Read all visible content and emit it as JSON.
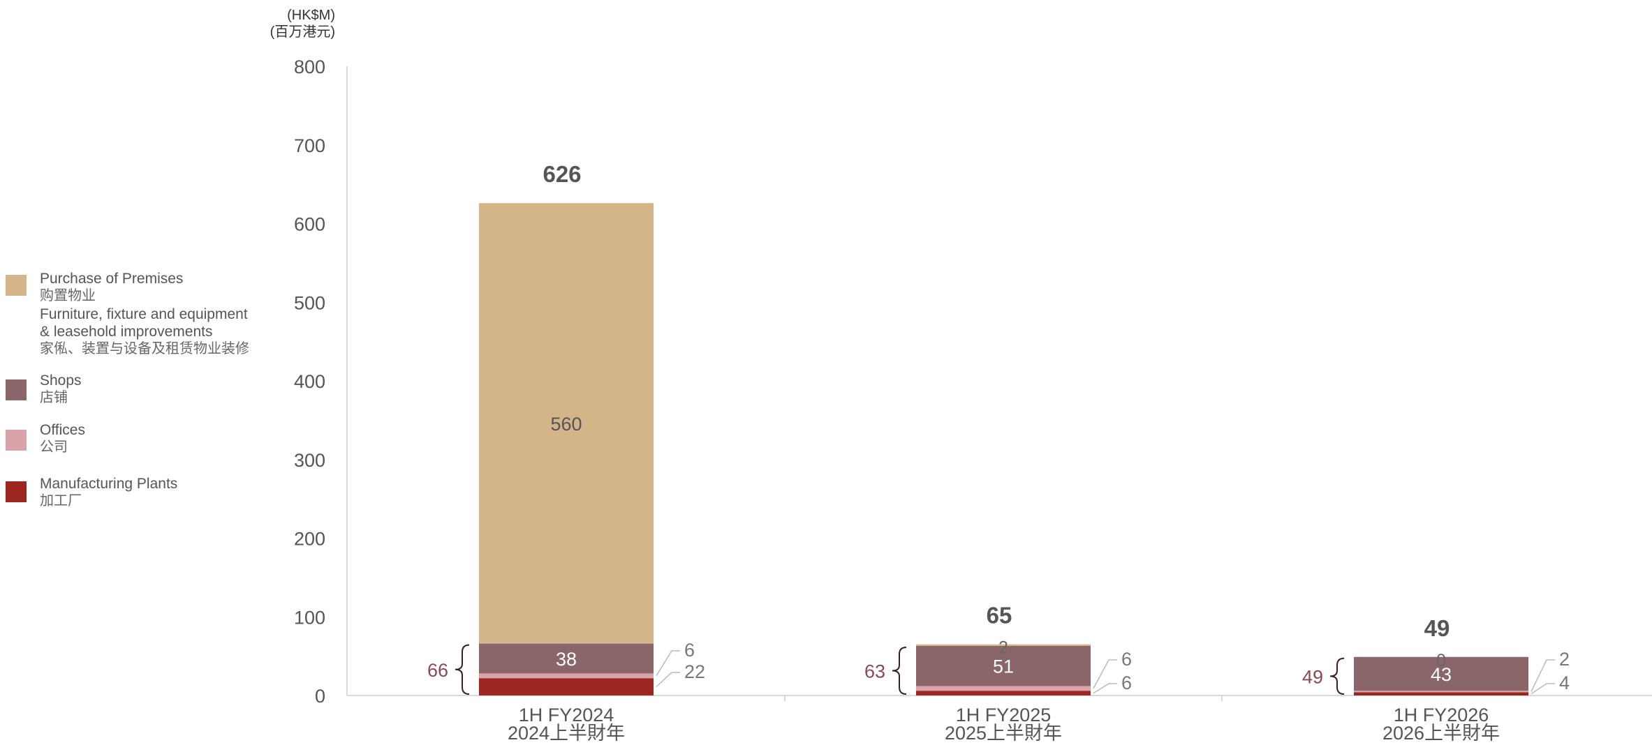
{
  "chart_data": {
    "type": "bar",
    "stacked": true,
    "unit_label": {
      "line1": "(HK$M)",
      "line2": "(百万港元)"
    },
    "ylim": [
      0,
      800
    ],
    "yticks": [
      0,
      100,
      200,
      300,
      400,
      500,
      600,
      700,
      800
    ],
    "grid": false,
    "legend_position": "left",
    "categories": [
      {
        "en": "1H FY2024",
        "cn": "2024上半財年"
      },
      {
        "en": "1H FY2025",
        "cn": "2025上半財年"
      },
      {
        "en": "1H FY2026",
        "cn": "2026上半財年"
      }
    ],
    "series": [
      {
        "key": "plants",
        "values": [
          22,
          6,
          4
        ],
        "color": "#9c2620"
      },
      {
        "key": "offices",
        "values": [
          6,
          6,
          2
        ],
        "color": "#d9a3aa"
      },
      {
        "key": "shops",
        "values": [
          38,
          51,
          43
        ],
        "color": "#8a666b"
      },
      {
        "key": "premises",
        "values": [
          560,
          2,
          0
        ],
        "color": "#d4b589"
      }
    ],
    "totals": [
      "626",
      "65",
      "49"
    ],
    "bracket_totals": [
      "66",
      "63",
      "49"
    ],
    "segment_labels": [
      {
        "premises": "560",
        "shops": "38",
        "offices": "6",
        "plants": "22"
      },
      {
        "premises": "2",
        "shops": "51",
        "offices": "6",
        "plants": "6"
      },
      {
        "premises": "0",
        "shops": "43",
        "offices": "2",
        "plants": "4"
      }
    ],
    "legend": [
      {
        "key": "premises",
        "en": "Purchase of Premises",
        "cn": "购置物业",
        "color": "#d4b589"
      },
      {
        "key": "ffe",
        "en1": "Furniture, fixture and equipment",
        "en2": "& leasehold improvements",
        "cn": "家俬、装置与设备及租赁物业装修"
      },
      {
        "key": "shops",
        "en": "Shops",
        "cn": "店铺",
        "color": "#8a666b"
      },
      {
        "key": "offices",
        "en": "Offices",
        "cn": "公司",
        "color": "#d9a3aa"
      },
      {
        "key": "plants",
        "en": "Manufacturing Plants",
        "cn": "加工厂",
        "color": "#9c2620"
      }
    ],
    "colors": {
      "axis": "#d9d9d9",
      "text": "#555555",
      "bracket_total": "#8a4a55",
      "leader": "#bbbbbb",
      "total_text": "#555555"
    }
  }
}
